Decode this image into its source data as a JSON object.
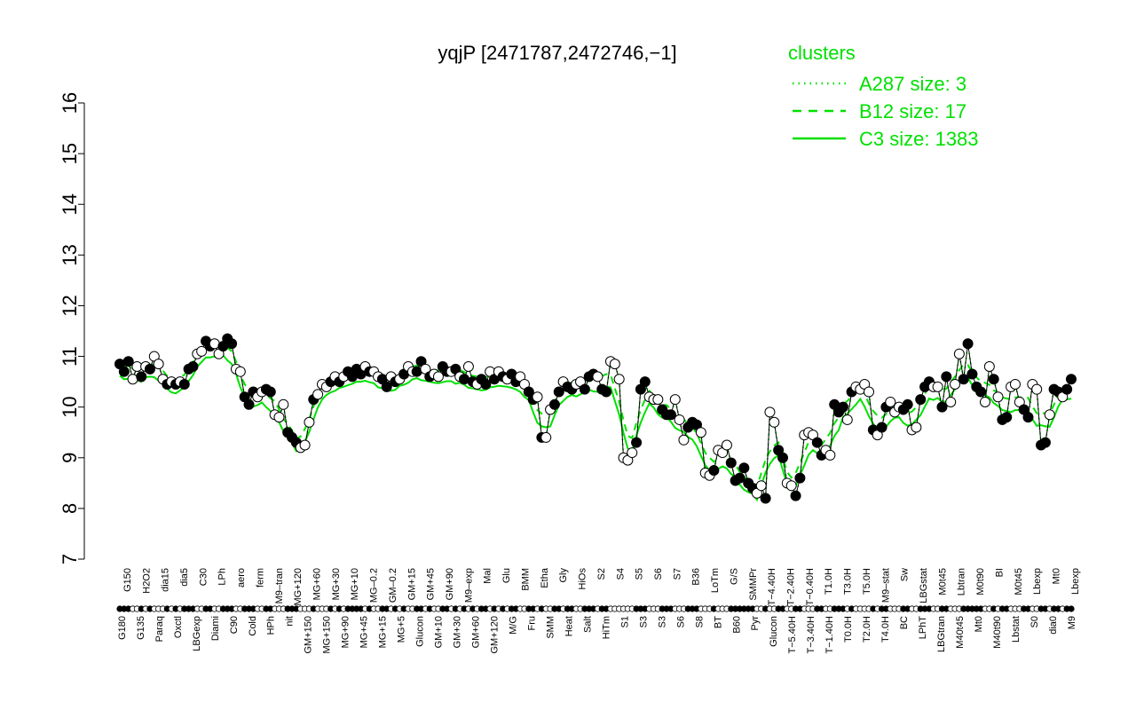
{
  "chart_data": {
    "type": "line",
    "title": "yqjP [2471787,2472746,−1]",
    "xlabel": "",
    "ylabel": "",
    "ylim": [
      7,
      16
    ],
    "yticks": [
      7,
      8,
      9,
      10,
      11,
      12,
      13,
      14,
      15,
      16
    ],
    "grid": false,
    "legend": {
      "title": "clusters",
      "placement": "top-right",
      "entries": [
        {
          "label": "A287 size: 3",
          "style": "dotted"
        },
        {
          "label": "B12 size: 17",
          "style": "dashed"
        },
        {
          "label": "C3 size: 1383",
          "style": "solid"
        }
      ]
    },
    "colors": {
      "series": "#00e000",
      "points": "#000000"
    },
    "x_labels": [
      "G150",
      "G180",
      "G135",
      "Paraq",
      "H2O2",
      "Oxctl",
      "LBGexp",
      "dia15",
      "Diami",
      "dia5",
      "C90",
      "C30",
      "Cold",
      "LPh",
      "HPh",
      "aero",
      "nit",
      "ferm",
      "GM+150",
      "M9–tran",
      "MG+150",
      "MG+120",
      "MG+90",
      "MG+60",
      "MG+45",
      "MG+30",
      "MG+15",
      "MG+10",
      "MG+5",
      "MG–0.2",
      "Glucon",
      "GM–0.2",
      "GM+10",
      "GM+15",
      "GM+30",
      "GM+45",
      "GM+60",
      "GM+90",
      "GM+120",
      "M9–exp",
      "M/G",
      "Mal",
      "Fru",
      "Glu",
      "SMM",
      "BMM",
      "Heat",
      "Salt",
      "Etha",
      "HiTm",
      "Gly",
      "HiOs",
      "S1",
      "S2",
      "S3",
      "S4",
      "S5",
      "S6",
      "S7",
      "S8",
      "BT",
      "B36",
      "B60",
      "LoTm",
      "Pyr",
      "G/S",
      "Glucon",
      "SMMPr",
      "T−5.40H",
      "T−4.40H",
      "T−3.40H",
      "T−2.40H",
      "T−1.40H",
      "T−0.40H",
      "T0.0H",
      "T1.0H",
      "T2.0H",
      "T3.0H",
      "T4.0H",
      "T5.0H",
      "M9–stat",
      "BC",
      "Sw",
      "LPhT",
      "LBGstat",
      "LBGtran",
      "M0t45",
      "M40t45",
      "Lbtran",
      "Mt0",
      "M40t90",
      "M0t90",
      "Lbstat",
      "BI",
      "S0",
      "M0t45",
      "dia0",
      "Lbexp",
      "M9",
      "Mt0",
      "Lbexp"
    ],
    "x_labels_row1": [
      "G150",
      "H2O2",
      "dia15",
      "dia5",
      "C30",
      "LPh",
      "aero",
      "ferm",
      "M9–tran",
      "MG+120",
      "MG+60",
      "MG+30",
      "MG+10",
      "MG–0.2",
      "GM–0.2",
      "GM+15",
      "GM+45",
      "GM+90",
      "M9–exp",
      "Mal",
      "Glu",
      "BMM",
      "Etha",
      "Gly",
      "HiOs",
      "S2",
      "S4",
      "S5",
      "S6",
      "S7",
      "B36",
      "LoTm",
      "G/S",
      "SMMPr",
      "T−4.40H",
      "T−2.40H",
      "T−0.40H",
      "T1.0H",
      "T3.0H",
      "T5.0H",
      "M9–stat",
      "Sw",
      "LBGstat",
      "M0t45",
      "Lbtran",
      "M0t90",
      "BI",
      "M0t45",
      "Lbexp",
      "Mt0",
      "Lbexp"
    ],
    "x_labels_row2": [
      "G180",
      "G135",
      "Paraq",
      "Oxctl",
      "LBGexp",
      "Diami",
      "C90",
      "Cold",
      "HPh",
      "nit",
      "GM+150",
      "MG+150",
      "MG+90",
      "MG+45",
      "MG+15",
      "MG+5",
      "Glucon",
      "GM+10",
      "GM+30",
      "GM+60",
      "GM+120",
      "M/G",
      "Fru",
      "SMM",
      "Heat",
      "Salt",
      "HiTm",
      "S1",
      "S3",
      "S3",
      "S6",
      "S8",
      "BT",
      "B60",
      "Pyr",
      "Glucon",
      "T−5.40H",
      "T−3.40H",
      "T−1.40H",
      "T0.0H",
      "T2.0H",
      "T4.0H",
      "BC",
      "LPhT",
      "LBGtran",
      "M40t45",
      "Mt0",
      "M40t90",
      "Lbstat",
      "S0",
      "dia0",
      "M9"
    ],
    "points": [
      {
        "x": 1,
        "y": 10.85,
        "f": 1
      },
      {
        "x": 2,
        "y": 10.7,
        "f": 1
      },
      {
        "x": 3,
        "y": 10.9,
        "f": 1
      },
      {
        "x": 4,
        "y": 10.55,
        "f": 0
      },
      {
        "x": 5,
        "y": 10.8,
        "f": 0
      },
      {
        "x": 6,
        "y": 10.6,
        "f": 1
      },
      {
        "x": 7,
        "y": 10.8,
        "f": 0
      },
      {
        "x": 8,
        "y": 10.75,
        "f": 1
      },
      {
        "x": 9,
        "y": 11.0,
        "f": 0
      },
      {
        "x": 10,
        "y": 10.85,
        "f": 0
      },
      {
        "x": 11,
        "y": 10.55,
        "f": 0
      },
      {
        "x": 12,
        "y": 10.45,
        "f": 1
      },
      {
        "x": 13,
        "y": 10.5,
        "f": 0
      },
      {
        "x": 14,
        "y": 10.45,
        "f": 1
      },
      {
        "x": 15,
        "y": 10.5,
        "f": 0
      },
      {
        "x": 16,
        "y": 10.45,
        "f": 1
      },
      {
        "x": 17,
        "y": 10.75,
        "f": 1
      },
      {
        "x": 18,
        "y": 10.8,
        "f": 1
      },
      {
        "x": 19,
        "y": 11.05,
        "f": 0
      },
      {
        "x": 20,
        "y": 11.1,
        "f": 0
      },
      {
        "x": 21,
        "y": 11.3,
        "f": 1
      },
      {
        "x": 22,
        "y": 11.2,
        "f": 1
      },
      {
        "x": 23,
        "y": 11.25,
        "f": 0
      },
      {
        "x": 24,
        "y": 11.05,
        "f": 0
      },
      {
        "x": 25,
        "y": 11.2,
        "f": 1
      },
      {
        "x": 26,
        "y": 11.35,
        "f": 1
      },
      {
        "x": 27,
        "y": 11.25,
        "f": 1
      },
      {
        "x": 28,
        "y": 10.75,
        "f": 0
      },
      {
        "x": 29,
        "y": 10.7,
        "f": 0
      },
      {
        "x": 30,
        "y": 10.2,
        "f": 1
      },
      {
        "x": 31,
        "y": 10.05,
        "f": 1
      },
      {
        "x": 32,
        "y": 10.3,
        "f": 1
      },
      {
        "x": 33,
        "y": 10.2,
        "f": 0
      },
      {
        "x": 34,
        "y": 10.3,
        "f": 0
      },
      {
        "x": 35,
        "y": 10.35,
        "f": 1
      },
      {
        "x": 36,
        "y": 10.3,
        "f": 1
      },
      {
        "x": 37,
        "y": 9.85,
        "f": 0
      },
      {
        "x": 38,
        "y": 9.8,
        "f": 0
      },
      {
        "x": 39,
        "y": 10.05,
        "f": 0
      },
      {
        "x": 40,
        "y": 9.5,
        "f": 1
      },
      {
        "x": 41,
        "y": 9.4,
        "f": 1
      },
      {
        "x": 42,
        "y": 9.3,
        "f": 1
      },
      {
        "x": 43,
        "y": 9.2,
        "f": 0
      },
      {
        "x": 44,
        "y": 9.25,
        "f": 0
      },
      {
        "x": 45,
        "y": 9.7,
        "f": 0
      },
      {
        "x": 46,
        "y": 10.15,
        "f": 1
      },
      {
        "x": 47,
        "y": 10.25,
        "f": 0
      },
      {
        "x": 48,
        "y": 10.45,
        "f": 0
      },
      {
        "x": 49,
        "y": 10.4,
        "f": 0
      },
      {
        "x": 50,
        "y": 10.5,
        "f": 1
      },
      {
        "x": 51,
        "y": 10.6,
        "f": 0
      },
      {
        "x": 52,
        "y": 10.5,
        "f": 1
      },
      {
        "x": 53,
        "y": 10.6,
        "f": 0
      },
      {
        "x": 54,
        "y": 10.7,
        "f": 1
      },
      {
        "x": 55,
        "y": 10.6,
        "f": 1
      },
      {
        "x": 56,
        "y": 10.75,
        "f": 1
      },
      {
        "x": 57,
        "y": 10.65,
        "f": 1
      },
      {
        "x": 58,
        "y": 10.8,
        "f": 0
      },
      {
        "x": 59,
        "y": 10.7,
        "f": 1
      },
      {
        "x": 60,
        "y": 10.7,
        "f": 0
      },
      {
        "x": 61,
        "y": 10.6,
        "f": 0
      },
      {
        "x": 62,
        "y": 10.55,
        "f": 1
      },
      {
        "x": 63,
        "y": 10.4,
        "f": 1
      },
      {
        "x": 64,
        "y": 10.6,
        "f": 0
      },
      {
        "x": 65,
        "y": 10.5,
        "f": 1
      },
      {
        "x": 66,
        "y": 10.55,
        "f": 0
      },
      {
        "x": 67,
        "y": 10.65,
        "f": 1
      },
      {
        "x": 68,
        "y": 10.8,
        "f": 0
      },
      {
        "x": 69,
        "y": 10.7,
        "f": 0
      },
      {
        "x": 70,
        "y": 10.7,
        "f": 1
      },
      {
        "x": 71,
        "y": 10.9,
        "f": 1
      },
      {
        "x": 72,
        "y": 10.75,
        "f": 0
      },
      {
        "x": 73,
        "y": 10.6,
        "f": 1
      },
      {
        "x": 74,
        "y": 10.65,
        "f": 0
      },
      {
        "x": 75,
        "y": 10.6,
        "f": 0
      },
      {
        "x": 76,
        "y": 10.8,
        "f": 1
      },
      {
        "x": 77,
        "y": 10.7,
        "f": 1
      },
      {
        "x": 78,
        "y": 10.7,
        "f": 0
      },
      {
        "x": 79,
        "y": 10.75,
        "f": 1
      },
      {
        "x": 80,
        "y": 10.6,
        "f": 0
      },
      {
        "x": 81,
        "y": 10.55,
        "f": 1
      },
      {
        "x": 82,
        "y": 10.8,
        "f": 0
      },
      {
        "x": 83,
        "y": 10.5,
        "f": 1
      },
      {
        "x": 84,
        "y": 10.45,
        "f": 0
      },
      {
        "x": 85,
        "y": 10.55,
        "f": 1
      },
      {
        "x": 86,
        "y": 10.45,
        "f": 1
      },
      {
        "x": 87,
        "y": 10.7,
        "f": 0
      },
      {
        "x": 88,
        "y": 10.55,
        "f": 1
      },
      {
        "x": 89,
        "y": 10.7,
        "f": 0
      },
      {
        "x": 90,
        "y": 10.6,
        "f": 1
      },
      {
        "x": 91,
        "y": 10.55,
        "f": 0
      },
      {
        "x": 92,
        "y": 10.65,
        "f": 1
      },
      {
        "x": 93,
        "y": 10.5,
        "f": 1
      },
      {
        "x": 94,
        "y": 10.6,
        "f": 0
      },
      {
        "x": 95,
        "y": 10.45,
        "f": 0
      },
      {
        "x": 96,
        "y": 10.3,
        "f": 1
      },
      {
        "x": 97,
        "y": 10.15,
        "f": 1
      },
      {
        "x": 98,
        "y": 10.2,
        "f": 0
      },
      {
        "x": 99,
        "y": 9.4,
        "f": 1
      },
      {
        "x": 100,
        "y": 9.4,
        "f": 0
      },
      {
        "x": 101,
        "y": 9.95,
        "f": 0
      },
      {
        "x": 102,
        "y": 10.05,
        "f": 1
      },
      {
        "x": 103,
        "y": 10.3,
        "f": 1
      },
      {
        "x": 104,
        "y": 10.5,
        "f": 0
      },
      {
        "x": 105,
        "y": 10.4,
        "f": 1
      },
      {
        "x": 106,
        "y": 10.35,
        "f": 1
      },
      {
        "x": 107,
        "y": 10.45,
        "f": 0
      },
      {
        "x": 108,
        "y": 10.5,
        "f": 0
      },
      {
        "x": 109,
        "y": 10.35,
        "f": 1
      },
      {
        "x": 110,
        "y": 10.6,
        "f": 1
      },
      {
        "x": 111,
        "y": 10.65,
        "f": 1
      },
      {
        "x": 112,
        "y": 10.6,
        "f": 0
      },
      {
        "x": 113,
        "y": 10.35,
        "f": 1
      },
      {
        "x": 114,
        "y": 10.3,
        "f": 1
      },
      {
        "x": 115,
        "y": 10.9,
        "f": 0
      },
      {
        "x": 116,
        "y": 10.85,
        "f": 0
      },
      {
        "x": 117,
        "y": 10.55,
        "f": 0
      },
      {
        "x": 118,
        "y": 9.0,
        "f": 0
      },
      {
        "x": 119,
        "y": 8.95,
        "f": 0
      },
      {
        "x": 120,
        "y": 9.1,
        "f": 0
      },
      {
        "x": 121,
        "y": 9.3,
        "f": 1
      },
      {
        "x": 122,
        "y": 10.35,
        "f": 1
      },
      {
        "x": 123,
        "y": 10.5,
        "f": 1
      },
      {
        "x": 124,
        "y": 10.2,
        "f": 0
      },
      {
        "x": 125,
        "y": 10.15,
        "f": 0
      },
      {
        "x": 126,
        "y": 10.15,
        "f": 0
      },
      {
        "x": 127,
        "y": 9.95,
        "f": 1
      },
      {
        "x": 128,
        "y": 9.85,
        "f": 1
      },
      {
        "x": 129,
        "y": 9.85,
        "f": 1
      },
      {
        "x": 130,
        "y": 10.15,
        "f": 0
      },
      {
        "x": 131,
        "y": 9.75,
        "f": 0
      },
      {
        "x": 132,
        "y": 9.35,
        "f": 0
      },
      {
        "x": 133,
        "y": 9.6,
        "f": 1
      },
      {
        "x": 134,
        "y": 9.7,
        "f": 1
      },
      {
        "x": 135,
        "y": 9.65,
        "f": 1
      },
      {
        "x": 136,
        "y": 9.5,
        "f": 0
      },
      {
        "x": 137,
        "y": 8.7,
        "f": 0
      },
      {
        "x": 138,
        "y": 8.65,
        "f": 0
      },
      {
        "x": 139,
        "y": 8.75,
        "f": 1
      },
      {
        "x": 140,
        "y": 9.15,
        "f": 0
      },
      {
        "x": 141,
        "y": 9.1,
        "f": 0
      },
      {
        "x": 142,
        "y": 9.25,
        "f": 0
      },
      {
        "x": 143,
        "y": 8.9,
        "f": 1
      },
      {
        "x": 144,
        "y": 8.55,
        "f": 1
      },
      {
        "x": 145,
        "y": 8.6,
        "f": 1
      },
      {
        "x": 146,
        "y": 8.8,
        "f": 1
      },
      {
        "x": 147,
        "y": 8.5,
        "f": 1
      },
      {
        "x": 148,
        "y": 8.4,
        "f": 1
      },
      {
        "x": 149,
        "y": 8.3,
        "f": 0
      },
      {
        "x": 150,
        "y": 8.45,
        "f": 0
      },
      {
        "x": 151,
        "y": 8.2,
        "f": 1
      },
      {
        "x": 152,
        "y": 9.9,
        "f": 0
      },
      {
        "x": 153,
        "y": 9.7,
        "f": 0
      },
      {
        "x": 154,
        "y": 9.15,
        "f": 1
      },
      {
        "x": 155,
        "y": 9.0,
        "f": 1
      },
      {
        "x": 156,
        "y": 8.5,
        "f": 0
      },
      {
        "x": 157,
        "y": 8.45,
        "f": 0
      },
      {
        "x": 158,
        "y": 8.25,
        "f": 1
      },
      {
        "x": 159,
        "y": 8.6,
        "f": 1
      },
      {
        "x": 160,
        "y": 9.45,
        "f": 0
      },
      {
        "x": 161,
        "y": 9.5,
        "f": 0
      },
      {
        "x": 162,
        "y": 9.45,
        "f": 0
      },
      {
        "x": 163,
        "y": 9.3,
        "f": 1
      },
      {
        "x": 164,
        "y": 9.05,
        "f": 1
      },
      {
        "x": 165,
        "y": 9.15,
        "f": 0
      },
      {
        "x": 166,
        "y": 9.05,
        "f": 0
      },
      {
        "x": 167,
        "y": 10.05,
        "f": 1
      },
      {
        "x": 168,
        "y": 9.9,
        "f": 1
      },
      {
        "x": 169,
        "y": 10.0,
        "f": 1
      },
      {
        "x": 170,
        "y": 9.75,
        "f": 0
      },
      {
        "x": 171,
        "y": 10.3,
        "f": 1
      },
      {
        "x": 172,
        "y": 10.4,
        "f": 0
      },
      {
        "x": 173,
        "y": 10.35,
        "f": 0
      },
      {
        "x": 174,
        "y": 10.45,
        "f": 0
      },
      {
        "x": 175,
        "y": 10.3,
        "f": 0
      },
      {
        "x": 176,
        "y": 9.55,
        "f": 1
      },
      {
        "x": 177,
        "y": 9.45,
        "f": 0
      },
      {
        "x": 178,
        "y": 9.6,
        "f": 1
      },
      {
        "x": 179,
        "y": 10.0,
        "f": 1
      },
      {
        "x": 180,
        "y": 10.1,
        "f": 0
      },
      {
        "x": 181,
        "y": 9.9,
        "f": 0
      },
      {
        "x": 182,
        "y": 10.0,
        "f": 0
      },
      {
        "x": 183,
        "y": 9.95,
        "f": 1
      },
      {
        "x": 184,
        "y": 10.05,
        "f": 1
      },
      {
        "x": 185,
        "y": 9.55,
        "f": 0
      },
      {
        "x": 186,
        "y": 9.6,
        "f": 0
      },
      {
        "x": 187,
        "y": 10.15,
        "f": 1
      },
      {
        "x": 188,
        "y": 10.4,
        "f": 1
      },
      {
        "x": 189,
        "y": 10.5,
        "f": 1
      },
      {
        "x": 190,
        "y": 10.4,
        "f": 0
      },
      {
        "x": 191,
        "y": 10.4,
        "f": 0
      },
      {
        "x": 192,
        "y": 10.0,
        "f": 1
      },
      {
        "x": 193,
        "y": 10.6,
        "f": 1
      },
      {
        "x": 194,
        "y": 10.1,
        "f": 0
      },
      {
        "x": 195,
        "y": 10.45,
        "f": 0
      },
      {
        "x": 196,
        "y": 11.05,
        "f": 0
      },
      {
        "x": 197,
        "y": 10.55,
        "f": 1
      },
      {
        "x": 198,
        "y": 11.25,
        "f": 1
      },
      {
        "x": 199,
        "y": 10.65,
        "f": 1
      },
      {
        "x": 200,
        "y": 10.4,
        "f": 1
      },
      {
        "x": 201,
        "y": 10.3,
        "f": 1
      },
      {
        "x": 202,
        "y": 10.1,
        "f": 0
      },
      {
        "x": 203,
        "y": 10.8,
        "f": 0
      },
      {
        "x": 204,
        "y": 10.55,
        "f": 1
      },
      {
        "x": 205,
        "y": 10.2,
        "f": 0
      },
      {
        "x": 206,
        "y": 9.75,
        "f": 1
      },
      {
        "x": 207,
        "y": 9.8,
        "f": 1
      },
      {
        "x": 208,
        "y": 10.4,
        "f": 0
      },
      {
        "x": 209,
        "y": 10.45,
        "f": 0
      },
      {
        "x": 210,
        "y": 10.1,
        "f": 0
      },
      {
        "x": 211,
        "y": 9.95,
        "f": 1
      },
      {
        "x": 212,
        "y": 9.8,
        "f": 1
      },
      {
        "x": 213,
        "y": 10.45,
        "f": 0
      },
      {
        "x": 214,
        "y": 10.35,
        "f": 0
      },
      {
        "x": 215,
        "y": 9.25,
        "f": 1
      },
      {
        "x": 216,
        "y": 9.3,
        "f": 1
      },
      {
        "x": 217,
        "y": 9.85,
        "f": 0
      },
      {
        "x": 218,
        "y": 10.35,
        "f": 1
      },
      {
        "x": 219,
        "y": 10.3,
        "f": 1
      },
      {
        "x": 220,
        "y": 10.2,
        "f": 0
      },
      {
        "x": 221,
        "y": 10.35,
        "f": 1
      },
      {
        "x": 222,
        "y": 10.55,
        "f": 1
      }
    ]
  }
}
